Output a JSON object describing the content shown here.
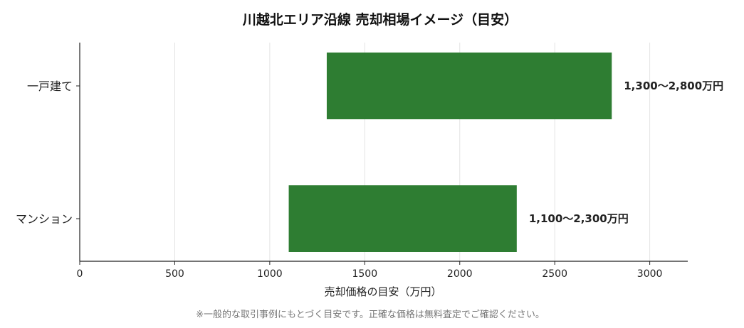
{
  "chart_data": {
    "type": "bar",
    "orientation": "horizontal",
    "title": "川越北エリア沿線 売却相場イメージ（目安）",
    "xlabel": "売却価格の目安（万円）",
    "ylabel": "",
    "xlim": [
      0,
      3200
    ],
    "xticks": [
      0,
      500,
      1000,
      1500,
      2000,
      2500,
      3000
    ],
    "grid": true,
    "categories": [
      "一戸建て",
      "マンション"
    ],
    "ranges": [
      {
        "category": "一戸建て",
        "start": 1300,
        "end": 2800,
        "label": "1,300〜2,800万円"
      },
      {
        "category": "マンション",
        "start": 1100,
        "end": 2300,
        "label": "1,100〜2,300万円"
      }
    ],
    "bar_color": "#2e7d32"
  },
  "footnote": "※一般的な取引事例にもとづく目安です。正確な価格は無料査定でご確認ください。"
}
